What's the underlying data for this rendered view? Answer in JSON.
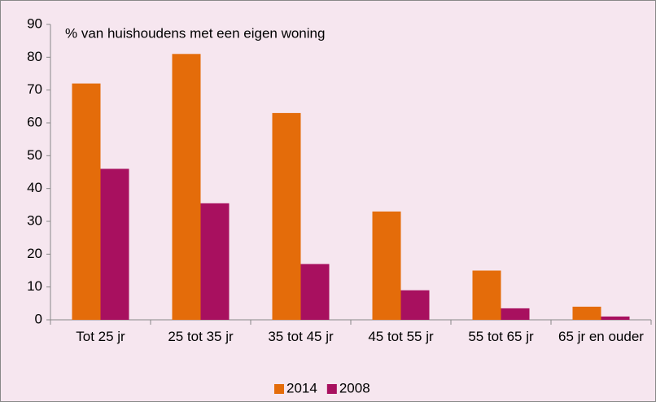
{
  "chart_data": {
    "type": "bar",
    "title": "% van huishoudens met een eigen woning",
    "categories": [
      "Tot 25 jr",
      "25 tot 35 jr",
      "35 tot 45 jr",
      "45 tot 55 jr",
      "55 tot 65 jr",
      "65 jr en ouder"
    ],
    "series": [
      {
        "name": "2014",
        "color": "#e46c0a",
        "values": [
          72,
          81,
          63,
          33,
          15,
          4
        ]
      },
      {
        "name": "2008",
        "color": "#a8105f",
        "values": [
          46,
          35.5,
          17,
          9,
          3.5,
          1
        ]
      }
    ],
    "ylim": [
      0,
      90
    ],
    "yticks": [
      0,
      10,
      20,
      30,
      40,
      50,
      60,
      70,
      80,
      90
    ],
    "grid": false,
    "legend": "bottom"
  }
}
